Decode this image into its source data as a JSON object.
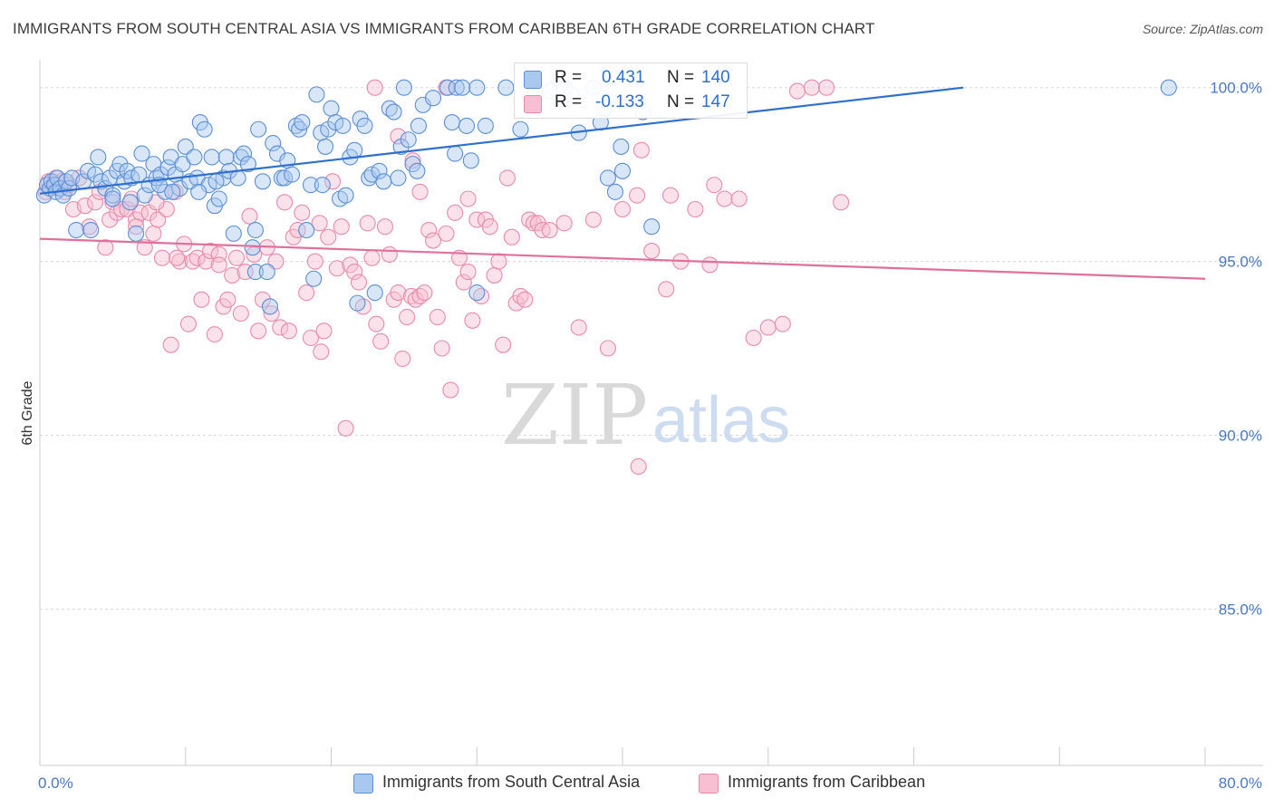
{
  "header": {
    "title": "IMMIGRANTS FROM SOUTH CENTRAL ASIA VS IMMIGRANTS FROM CARIBBEAN 6TH GRADE CORRELATION CHART",
    "source": "Source: ZipAtlas.com"
  },
  "watermark": {
    "zip": "ZIP",
    "atlas": "atlas"
  },
  "legend": {
    "series1": {
      "r_label": "R =",
      "r_value": "0.431",
      "n_label": "N =",
      "n_value": "140"
    },
    "series2": {
      "r_label": "R =",
      "r_value": "-0.133",
      "n_label": "N =",
      "n_value": "147"
    }
  },
  "bottom_legend": {
    "series1": "Immigrants from South Central Asia",
    "series2": "Immigrants from Caribbean"
  },
  "colors": {
    "series1_fill": "#a9c8f0",
    "series1_stroke": "#5b8fd6",
    "series1_line": "#2e6fd0",
    "series2_fill": "#f7bfd1",
    "series2_stroke": "#e98aab",
    "series2_line": "#e0709a",
    "axis_text": "#4a78c2",
    "grid": "#d8d8d8"
  },
  "chart_data": {
    "type": "scatter",
    "title": "IMMIGRANTS FROM SOUTH CENTRAL ASIA VS IMMIGRANTS FROM CARIBBEAN 6TH GRADE CORRELATION CHART",
    "xlabel": "",
    "ylabel": "6th Grade",
    "xlim": [
      0,
      80
    ],
    "ylim": [
      80.5,
      100.8
    ],
    "x_tick_labels": [
      "0.0%",
      "80.0%"
    ],
    "y_ticks": [
      85,
      90,
      95,
      100
    ],
    "y_tick_labels": [
      "85.0%",
      "90.0%",
      "95.0%",
      "100.0%"
    ],
    "grid": true,
    "legend_position": "top-center",
    "series": [
      {
        "name": "Immigrants from South Central Asia",
        "R": 0.431,
        "N": 140,
        "trend": {
          "x": [
            0,
            63.4
          ],
          "y": [
            96.95,
            100.0
          ]
        },
        "points": [
          [
            0.3,
            96.9
          ],
          [
            0.5,
            97.2
          ],
          [
            0.7,
            97.1
          ],
          [
            0.8,
            97.3
          ],
          [
            1.0,
            97.2
          ],
          [
            1.1,
            97.0
          ],
          [
            1.2,
            97.4
          ],
          [
            1.4,
            97.1
          ],
          [
            1.6,
            96.9
          ],
          [
            1.8,
            97.3
          ],
          [
            2.0,
            97.1
          ],
          [
            2.2,
            97.4
          ],
          [
            2.5,
            95.9
          ],
          [
            3.0,
            97.3
          ],
          [
            3.3,
            97.6
          ],
          [
            3.5,
            95.9
          ],
          [
            3.8,
            97.5
          ],
          [
            4.0,
            98.0
          ],
          [
            4.2,
            97.3
          ],
          [
            4.5,
            97.1
          ],
          [
            4.8,
            97.4
          ],
          [
            5.0,
            96.9
          ],
          [
            5.3,
            97.6
          ],
          [
            5.5,
            97.8
          ],
          [
            5.8,
            97.3
          ],
          [
            6.0,
            97.6
          ],
          [
            6.3,
            97.4
          ],
          [
            6.6,
            95.8
          ],
          [
            6.8,
            97.5
          ],
          [
            7.0,
            98.1
          ],
          [
            7.2,
            96.9
          ],
          [
            7.5,
            97.2
          ],
          [
            7.8,
            97.8
          ],
          [
            8.0,
            97.4
          ],
          [
            8.3,
            97.5
          ],
          [
            8.6,
            97.0
          ],
          [
            8.8,
            97.7
          ],
          [
            9.0,
            98.0
          ],
          [
            9.3,
            97.5
          ],
          [
            9.6,
            97.1
          ],
          [
            9.8,
            97.8
          ],
          [
            10.0,
            98.3
          ],
          [
            10.3,
            97.3
          ],
          [
            10.6,
            98.0
          ],
          [
            10.8,
            97.4
          ],
          [
            11.0,
            99.0
          ],
          [
            11.3,
            98.8
          ],
          [
            11.6,
            97.2
          ],
          [
            11.8,
            98.0
          ],
          [
            12.0,
            96.6
          ],
          [
            12.3,
            96.8
          ],
          [
            12.6,
            97.4
          ],
          [
            12.8,
            98.0
          ],
          [
            13.0,
            97.6
          ],
          [
            13.3,
            95.8
          ],
          [
            13.6,
            97.4
          ],
          [
            13.8,
            98.0
          ],
          [
            14.0,
            98.1
          ],
          [
            14.3,
            97.8
          ],
          [
            14.6,
            95.4
          ],
          [
            14.8,
            94.7
          ],
          [
            15.0,
            98.8
          ],
          [
            15.3,
            97.3
          ],
          [
            15.6,
            94.7
          ],
          [
            15.8,
            93.7
          ],
          [
            16.0,
            98.4
          ],
          [
            16.3,
            98.1
          ],
          [
            16.6,
            97.4
          ],
          [
            16.8,
            97.4
          ],
          [
            17.0,
            97.9
          ],
          [
            17.3,
            97.5
          ],
          [
            17.6,
            98.9
          ],
          [
            17.8,
            98.8
          ],
          [
            18.0,
            99.0
          ],
          [
            18.3,
            95.9
          ],
          [
            18.6,
            97.2
          ],
          [
            18.8,
            94.5
          ],
          [
            19.0,
            99.8
          ],
          [
            19.3,
            98.7
          ],
          [
            19.6,
            98.3
          ],
          [
            19.8,
            98.8
          ],
          [
            20.0,
            99.4
          ],
          [
            20.3,
            99.0
          ],
          [
            20.6,
            96.8
          ],
          [
            20.8,
            98.9
          ],
          [
            21.0,
            96.9
          ],
          [
            21.3,
            98.0
          ],
          [
            21.6,
            98.2
          ],
          [
            21.8,
            93.8
          ],
          [
            22.0,
            99.1
          ],
          [
            22.3,
            98.9
          ],
          [
            22.6,
            97.4
          ],
          [
            22.8,
            97.5
          ],
          [
            23.0,
            94.1
          ],
          [
            23.3,
            97.6
          ],
          [
            23.6,
            97.3
          ],
          [
            24.0,
            99.4
          ],
          [
            24.3,
            99.3
          ],
          [
            24.6,
            97.4
          ],
          [
            24.8,
            98.3
          ],
          [
            25.0,
            100.0
          ],
          [
            25.3,
            98.5
          ],
          [
            25.6,
            97.8
          ],
          [
            26.0,
            98.9
          ],
          [
            26.3,
            99.5
          ],
          [
            27.0,
            99.7
          ],
          [
            28.0,
            100.0
          ],
          [
            28.3,
            99.0
          ],
          [
            28.6,
            100.0
          ],
          [
            29.0,
            100.0
          ],
          [
            29.3,
            98.9
          ],
          [
            29.6,
            97.9
          ],
          [
            30.0,
            100.0
          ],
          [
            30.6,
            98.9
          ],
          [
            32.0,
            100.0
          ],
          [
            33.0,
            98.8
          ],
          [
            34.0,
            99.9
          ],
          [
            35.0,
            99.9
          ],
          [
            36.0,
            100.0
          ],
          [
            37.0,
            98.7
          ],
          [
            38.0,
            100.0
          ],
          [
            39.0,
            97.4
          ],
          [
            39.5,
            97.0
          ],
          [
            40.0,
            97.6
          ],
          [
            42.0,
            96.0
          ],
          [
            38.5,
            99.0
          ],
          [
            30.0,
            94.1
          ],
          [
            14.8,
            95.9
          ],
          [
            12.1,
            97.3
          ],
          [
            6.2,
            96.7
          ],
          [
            5.0,
            96.8
          ],
          [
            8.2,
            97.2
          ],
          [
            9.1,
            97.0
          ],
          [
            10.9,
            97.0
          ],
          [
            19.4,
            97.2
          ],
          [
            28.5,
            98.1
          ],
          [
            36.5,
            99.8
          ],
          [
            41.4,
            99.3
          ],
          [
            77.5,
            100.0
          ],
          [
            38.8,
            99.4
          ],
          [
            39.9,
            98.3
          ],
          [
            25.9,
            97.6
          ]
        ]
      },
      {
        "name": "Immigrants from Caribbean",
        "R": -0.133,
        "N": 147,
        "trend": {
          "x": [
            0,
            80
          ],
          "y": [
            95.65,
            94.5
          ]
        },
        "points": [
          [
            0.4,
            97.0
          ],
          [
            0.6,
            97.3
          ],
          [
            0.9,
            97.2
          ],
          [
            1.1,
            97.4
          ],
          [
            1.3,
            97.1
          ],
          [
            1.5,
            97.3
          ],
          [
            1.7,
            97.0
          ],
          [
            2.0,
            97.2
          ],
          [
            2.3,
            96.5
          ],
          [
            2.7,
            97.4
          ],
          [
            3.1,
            96.6
          ],
          [
            3.4,
            96.0
          ],
          [
            3.8,
            96.7
          ],
          [
            4.1,
            97.0
          ],
          [
            4.5,
            95.4
          ],
          [
            4.8,
            96.2
          ],
          [
            5.0,
            96.7
          ],
          [
            5.3,
            96.4
          ],
          [
            5.6,
            96.5
          ],
          [
            6.0,
            96.5
          ],
          [
            6.3,
            96.8
          ],
          [
            6.6,
            96.2
          ],
          [
            6.9,
            96.4
          ],
          [
            7.2,
            95.4
          ],
          [
            7.5,
            96.4
          ],
          [
            7.8,
            95.8
          ],
          [
            8.1,
            96.2
          ],
          [
            8.4,
            95.1
          ],
          [
            8.7,
            96.5
          ],
          [
            9.0,
            92.6
          ],
          [
            9.3,
            97.0
          ],
          [
            9.6,
            95.0
          ],
          [
            9.9,
            95.5
          ],
          [
            10.2,
            93.2
          ],
          [
            10.5,
            95.0
          ],
          [
            10.8,
            95.1
          ],
          [
            11.1,
            93.9
          ],
          [
            11.4,
            95.0
          ],
          [
            11.7,
            95.3
          ],
          [
            12.0,
            92.9
          ],
          [
            12.3,
            95.2
          ],
          [
            12.6,
            93.7
          ],
          [
            12.9,
            93.9
          ],
          [
            13.2,
            94.6
          ],
          [
            13.5,
            95.1
          ],
          [
            13.8,
            93.5
          ],
          [
            14.1,
            94.7
          ],
          [
            14.4,
            96.3
          ],
          [
            14.7,
            95.2
          ],
          [
            15.0,
            93.0
          ],
          [
            15.3,
            93.9
          ],
          [
            15.6,
            95.4
          ],
          [
            15.9,
            93.5
          ],
          [
            16.2,
            95.0
          ],
          [
            16.5,
            93.1
          ],
          [
            16.8,
            96.7
          ],
          [
            17.1,
            93.0
          ],
          [
            17.4,
            95.7
          ],
          [
            17.7,
            95.9
          ],
          [
            18.0,
            96.4
          ],
          [
            18.3,
            94.1
          ],
          [
            18.6,
            92.8
          ],
          [
            18.9,
            95.0
          ],
          [
            19.2,
            96.1
          ],
          [
            19.5,
            93.0
          ],
          [
            19.8,
            95.7
          ],
          [
            20.1,
            97.3
          ],
          [
            20.4,
            94.8
          ],
          [
            20.7,
            96.0
          ],
          [
            21.0,
            90.2
          ],
          [
            21.3,
            94.9
          ],
          [
            21.6,
            94.7
          ],
          [
            21.9,
            94.4
          ],
          [
            22.2,
            93.7
          ],
          [
            22.5,
            96.1
          ],
          [
            22.8,
            95.1
          ],
          [
            23.1,
            93.2
          ],
          [
            23.4,
            92.7
          ],
          [
            23.7,
            96.0
          ],
          [
            24.0,
            95.2
          ],
          [
            24.3,
            93.9
          ],
          [
            24.6,
            94.1
          ],
          [
            24.9,
            92.2
          ],
          [
            25.2,
            93.4
          ],
          [
            25.5,
            94.0
          ],
          [
            25.8,
            93.9
          ],
          [
            26.1,
            94.0
          ],
          [
            26.4,
            94.1
          ],
          [
            26.7,
            95.9
          ],
          [
            27.0,
            95.6
          ],
          [
            27.3,
            93.4
          ],
          [
            27.6,
            92.5
          ],
          [
            27.9,
            95.8
          ],
          [
            28.2,
            91.3
          ],
          [
            28.5,
            96.4
          ],
          [
            28.8,
            95.1
          ],
          [
            29.1,
            94.4
          ],
          [
            29.4,
            94.7
          ],
          [
            29.7,
            93.3
          ],
          [
            30.0,
            96.2
          ],
          [
            30.3,
            94.0
          ],
          [
            30.6,
            96.2
          ],
          [
            30.9,
            96.0
          ],
          [
            31.2,
            94.6
          ],
          [
            31.5,
            95.0
          ],
          [
            31.8,
            92.6
          ],
          [
            32.1,
            97.4
          ],
          [
            32.4,
            95.7
          ],
          [
            32.7,
            93.8
          ],
          [
            33.0,
            94.0
          ],
          [
            33.3,
            93.9
          ],
          [
            33.6,
            96.2
          ],
          [
            33.9,
            96.1
          ],
          [
            34.2,
            96.1
          ],
          [
            34.5,
            95.9
          ],
          [
            35.0,
            95.9
          ],
          [
            36.0,
            96.1
          ],
          [
            37.0,
            93.1
          ],
          [
            38.0,
            96.2
          ],
          [
            39.0,
            92.5
          ],
          [
            40.0,
            96.5
          ],
          [
            41.0,
            96.9
          ],
          [
            42.0,
            95.3
          ],
          [
            43.0,
            94.2
          ],
          [
            44.0,
            95.0
          ],
          [
            45.0,
            96.5
          ],
          [
            46.0,
            94.9
          ],
          [
            47.0,
            96.8
          ],
          [
            48.0,
            96.8
          ],
          [
            49.0,
            92.8
          ],
          [
            50.0,
            93.1
          ],
          [
            51.0,
            93.2
          ],
          [
            52.0,
            99.9
          ],
          [
            53.0,
            100.0
          ],
          [
            54.0,
            100.0
          ],
          [
            27.9,
            100.0
          ],
          [
            23.0,
            100.0
          ],
          [
            24.6,
            98.6
          ],
          [
            25.6,
            97.9
          ],
          [
            26.1,
            97.0
          ],
          [
            29.4,
            96.8
          ],
          [
            41.3,
            98.2
          ],
          [
            43.3,
            96.9
          ],
          [
            55.0,
            96.7
          ],
          [
            41.1,
            89.1
          ],
          [
            19.3,
            92.4
          ],
          [
            8.0,
            96.7
          ],
          [
            6.6,
            96.0
          ],
          [
            12.3,
            94.9
          ],
          [
            9.4,
            95.1
          ],
          [
            46.3,
            97.2
          ]
        ]
      }
    ]
  }
}
